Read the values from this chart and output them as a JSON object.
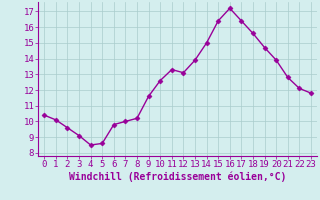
{
  "x": [
    0,
    1,
    2,
    3,
    4,
    5,
    6,
    7,
    8,
    9,
    10,
    11,
    12,
    13,
    14,
    15,
    16,
    17,
    18,
    19,
    20,
    21,
    22,
    23
  ],
  "y": [
    10.4,
    10.1,
    9.6,
    9.1,
    8.5,
    8.6,
    9.8,
    10.0,
    10.2,
    11.6,
    12.6,
    13.3,
    13.1,
    13.9,
    15.0,
    16.4,
    17.2,
    16.4,
    15.6,
    14.7,
    13.9,
    12.8,
    12.1,
    11.8
  ],
  "line_color": "#990099",
  "marker": "D",
  "markersize": 2.5,
  "linewidth": 1.0,
  "xlabel": "Windchill (Refroidissement éolien,°C)",
  "xlabel_fontsize": 7,
  "ylabel_ticks": [
    8,
    9,
    10,
    11,
    12,
    13,
    14,
    15,
    16,
    17
  ],
  "ylim": [
    7.8,
    17.6
  ],
  "xlim": [
    -0.5,
    23.5
  ],
  "bg_color": "#d4eeee",
  "grid_color": "#aacccc",
  "tick_color": "#990099",
  "tick_fontsize": 6.5,
  "xlabel_fontweight": "bold"
}
